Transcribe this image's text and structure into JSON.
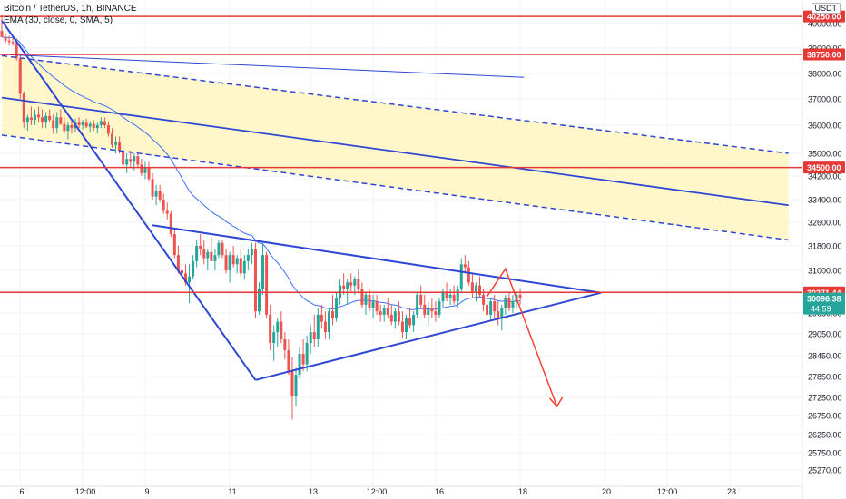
{
  "header": {
    "title": "Bitcoin / TetherUS, 1h, BINANCE",
    "indicator": "EMA (30, close, 0, SMA, 5)",
    "currency": "USDT"
  },
  "colors": {
    "bull": "#26a69a",
    "bear": "#ef5350",
    "ema": "#2962ff",
    "drawing_blue": "#2d47d4",
    "level_red": "#e53935",
    "channel_fill": "#fff5bf",
    "projection": "#f44336",
    "current_price_bg": "#26a69a"
  },
  "chart_data": {
    "type": "candlestick",
    "symbol": "BTCUSDT",
    "timeframe": "1h",
    "y_axis": {
      "ticks": [
        "40000.00",
        "39000.00",
        "38000.00",
        "37000.00",
        "36000.00",
        "35000.00",
        "34200.00",
        "33400.00",
        "32600.00",
        "31800.00",
        "31000.00",
        "30250.00",
        "29650.00",
        "29050.00",
        "28450.00",
        "27850.00",
        "27250.00",
        "26750.00",
        "26250.00",
        "25750.00",
        "25270.00"
      ],
      "range": [
        25000,
        40700
      ]
    },
    "x_axis": {
      "ticks": [
        "6",
        "12:00",
        "9",
        "11",
        "13",
        "12:00",
        "16",
        "18",
        "20",
        "12:00",
        "23"
      ]
    },
    "ema_period": 30,
    "horizontal_levels": [
      {
        "price": 40250.0,
        "label": "40250.00"
      },
      {
        "price": 38750.0,
        "label": "38750.00"
      },
      {
        "price": 34500.0,
        "label": "34500.00"
      },
      {
        "price": 30271.44,
        "label": "30271.44"
      }
    ],
    "current_price": {
      "value": 30096.38,
      "label": "30096.38",
      "countdown": "44:59"
    },
    "candles": [
      {
        "o": 39700,
        "h": 40300,
        "l": 39500,
        "c": 39450
      },
      {
        "o": 39450,
        "h": 39600,
        "l": 39200,
        "c": 39300
      },
      {
        "o": 39300,
        "h": 39500,
        "l": 39100,
        "c": 39250
      },
      {
        "o": 39250,
        "h": 39400,
        "l": 39100,
        "c": 39200
      },
      {
        "o": 39200,
        "h": 39400,
        "l": 38500,
        "c": 38600
      },
      {
        "o": 38600,
        "h": 38800,
        "l": 37000,
        "c": 37200
      },
      {
        "o": 37200,
        "h": 37300,
        "l": 35900,
        "c": 36100
      },
      {
        "o": 36100,
        "h": 36400,
        "l": 35800,
        "c": 36300
      },
      {
        "o": 36300,
        "h": 36700,
        "l": 36000,
        "c": 36200
      },
      {
        "o": 36200,
        "h": 36600,
        "l": 36000,
        "c": 36400
      },
      {
        "o": 36400,
        "h": 36700,
        "l": 36100,
        "c": 36300
      },
      {
        "o": 36300,
        "h": 36600,
        "l": 35900,
        "c": 36100
      },
      {
        "o": 36100,
        "h": 36500,
        "l": 35900,
        "c": 36350
      },
      {
        "o": 36350,
        "h": 36600,
        "l": 36100,
        "c": 36200
      },
      {
        "o": 36200,
        "h": 36400,
        "l": 35700,
        "c": 35900
      },
      {
        "o": 35900,
        "h": 36500,
        "l": 35700,
        "c": 36300
      },
      {
        "o": 36300,
        "h": 36600,
        "l": 36000,
        "c": 36050
      },
      {
        "o": 36050,
        "h": 36300,
        "l": 35700,
        "c": 35800
      },
      {
        "o": 35800,
        "h": 36100,
        "l": 35500,
        "c": 36000
      },
      {
        "o": 36000,
        "h": 36200,
        "l": 35700,
        "c": 35900
      },
      {
        "o": 35900,
        "h": 36250,
        "l": 35750,
        "c": 36100
      },
      {
        "o": 36100,
        "h": 36300,
        "l": 35900,
        "c": 36000
      },
      {
        "o": 36000,
        "h": 36200,
        "l": 35850,
        "c": 36100
      },
      {
        "o": 36100,
        "h": 36250,
        "l": 35900,
        "c": 35950
      },
      {
        "o": 35950,
        "h": 36150,
        "l": 35750,
        "c": 36050
      },
      {
        "o": 36050,
        "h": 36200,
        "l": 35800,
        "c": 35900
      },
      {
        "o": 35900,
        "h": 36100,
        "l": 35700,
        "c": 36000
      },
      {
        "o": 36000,
        "h": 36300,
        "l": 35900,
        "c": 36150
      },
      {
        "o": 36150,
        "h": 36300,
        "l": 35900,
        "c": 36000
      },
      {
        "o": 36000,
        "h": 36150,
        "l": 35600,
        "c": 35700
      },
      {
        "o": 35700,
        "h": 35900,
        "l": 35200,
        "c": 35300
      },
      {
        "o": 35300,
        "h": 35600,
        "l": 35000,
        "c": 35400
      },
      {
        "o": 35400,
        "h": 35600,
        "l": 35000,
        "c": 35100
      },
      {
        "o": 35100,
        "h": 35300,
        "l": 34500,
        "c": 34600
      },
      {
        "o": 34600,
        "h": 35000,
        "l": 34300,
        "c": 34800
      },
      {
        "o": 34800,
        "h": 35100,
        "l": 34500,
        "c": 34700
      },
      {
        "o": 34700,
        "h": 35000,
        "l": 34400,
        "c": 34900
      },
      {
        "o": 34900,
        "h": 35050,
        "l": 34500,
        "c": 34600
      },
      {
        "o": 34600,
        "h": 34800,
        "l": 34200,
        "c": 34300
      },
      {
        "o": 34300,
        "h": 34700,
        "l": 34100,
        "c": 34500
      },
      {
        "o": 34500,
        "h": 34700,
        "l": 34000,
        "c": 34100
      },
      {
        "o": 34100,
        "h": 34300,
        "l": 33400,
        "c": 33500
      },
      {
        "o": 33500,
        "h": 33900,
        "l": 33200,
        "c": 33700
      },
      {
        "o": 33700,
        "h": 33900,
        "l": 33300,
        "c": 33400
      },
      {
        "o": 33400,
        "h": 33600,
        "l": 32900,
        "c": 33000
      },
      {
        "o": 33000,
        "h": 33300,
        "l": 32700,
        "c": 32900
      },
      {
        "o": 32900,
        "h": 33000,
        "l": 32100,
        "c": 32200
      },
      {
        "o": 32200,
        "h": 32400,
        "l": 31400,
        "c": 31500
      },
      {
        "o": 31500,
        "h": 31800,
        "l": 30900,
        "c": 31000
      },
      {
        "o": 31000,
        "h": 31300,
        "l": 30700,
        "c": 30900
      },
      {
        "o": 30900,
        "h": 31200,
        "l": 30500,
        "c": 30600
      },
      {
        "o": 30600,
        "h": 31200,
        "l": 29950,
        "c": 30800
      },
      {
        "o": 30800,
        "h": 31500,
        "l": 30700,
        "c": 31300
      },
      {
        "o": 31300,
        "h": 32000,
        "l": 31100,
        "c": 31800
      },
      {
        "o": 31800,
        "h": 32200,
        "l": 31500,
        "c": 31700
      },
      {
        "o": 31700,
        "h": 32000,
        "l": 31200,
        "c": 31400
      },
      {
        "o": 31400,
        "h": 31700,
        "l": 31000,
        "c": 31600
      },
      {
        "o": 31600,
        "h": 32100,
        "l": 31300,
        "c": 31300
      },
      {
        "o": 31300,
        "h": 31700,
        "l": 31000,
        "c": 31500
      },
      {
        "o": 31500,
        "h": 32000,
        "l": 31400,
        "c": 31900
      },
      {
        "o": 31900,
        "h": 32000,
        "l": 31400,
        "c": 31500
      },
      {
        "o": 31500,
        "h": 31700,
        "l": 30900,
        "c": 31000
      },
      {
        "o": 31000,
        "h": 31600,
        "l": 30600,
        "c": 31500
      },
      {
        "o": 31500,
        "h": 31800,
        "l": 31100,
        "c": 31200
      },
      {
        "o": 31200,
        "h": 31500,
        "l": 30900,
        "c": 31400
      },
      {
        "o": 31400,
        "h": 31700,
        "l": 30800,
        "c": 30900
      },
      {
        "o": 30900,
        "h": 31500,
        "l": 30700,
        "c": 31300
      },
      {
        "o": 31300,
        "h": 31700,
        "l": 31000,
        "c": 31500
      },
      {
        "o": 31500,
        "h": 31900,
        "l": 31200,
        "c": 31700
      },
      {
        "o": 31700,
        "h": 31900,
        "l": 29500,
        "c": 29700
      },
      {
        "o": 29700,
        "h": 30600,
        "l": 29600,
        "c": 30400
      },
      {
        "o": 30400,
        "h": 31900,
        "l": 30200,
        "c": 31500
      },
      {
        "o": 31500,
        "h": 31600,
        "l": 29500,
        "c": 29600
      },
      {
        "o": 29600,
        "h": 29900,
        "l": 28600,
        "c": 28800
      },
      {
        "o": 28800,
        "h": 29300,
        "l": 28300,
        "c": 29100
      },
      {
        "o": 29100,
        "h": 29500,
        "l": 28700,
        "c": 29400
      },
      {
        "o": 29400,
        "h": 29700,
        "l": 28800,
        "c": 28900
      },
      {
        "o": 28900,
        "h": 29100,
        "l": 28350,
        "c": 28600
      },
      {
        "o": 28600,
        "h": 28900,
        "l": 27900,
        "c": 28000
      },
      {
        "o": 28000,
        "h": 28400,
        "l": 26650,
        "c": 27300
      },
      {
        "o": 27300,
        "h": 28100,
        "l": 27000,
        "c": 27900
      },
      {
        "o": 27900,
        "h": 28700,
        "l": 27800,
        "c": 28500
      },
      {
        "o": 28500,
        "h": 28900,
        "l": 28000,
        "c": 28200
      },
      {
        "o": 28200,
        "h": 29000,
        "l": 28000,
        "c": 28800
      },
      {
        "o": 28800,
        "h": 29300,
        "l": 28500,
        "c": 29100
      },
      {
        "o": 29100,
        "h": 29600,
        "l": 28700,
        "c": 28900
      },
      {
        "o": 28900,
        "h": 29800,
        "l": 28700,
        "c": 29600
      },
      {
        "o": 29600,
        "h": 29900,
        "l": 29200,
        "c": 29400
      },
      {
        "o": 29400,
        "h": 29700,
        "l": 28900,
        "c": 29100
      },
      {
        "o": 29100,
        "h": 29800,
        "l": 28900,
        "c": 29700
      },
      {
        "o": 29700,
        "h": 30200,
        "l": 29300,
        "c": 29500
      },
      {
        "o": 29500,
        "h": 30300,
        "l": 29400,
        "c": 30100
      },
      {
        "o": 30100,
        "h": 30700,
        "l": 29900,
        "c": 30500
      },
      {
        "o": 30500,
        "h": 30900,
        "l": 30200,
        "c": 30400
      },
      {
        "o": 30400,
        "h": 30700,
        "l": 29900,
        "c": 30600
      },
      {
        "o": 30600,
        "h": 30900,
        "l": 30300,
        "c": 30500
      },
      {
        "o": 30500,
        "h": 30800,
        "l": 30200,
        "c": 30700
      },
      {
        "o": 30700,
        "h": 31050,
        "l": 30300,
        "c": 30400
      },
      {
        "o": 30400,
        "h": 30600,
        "l": 29800,
        "c": 29900
      },
      {
        "o": 29900,
        "h": 30300,
        "l": 29600,
        "c": 30200
      },
      {
        "o": 30200,
        "h": 30400,
        "l": 29700,
        "c": 29800
      },
      {
        "o": 29800,
        "h": 30200,
        "l": 29500,
        "c": 30000
      },
      {
        "o": 30000,
        "h": 30200,
        "l": 29600,
        "c": 29700
      },
      {
        "o": 29700,
        "h": 29900,
        "l": 29400,
        "c": 29600
      },
      {
        "o": 29600,
        "h": 29900,
        "l": 29400,
        "c": 29800
      },
      {
        "o": 29800,
        "h": 30100,
        "l": 29500,
        "c": 29600
      },
      {
        "o": 29600,
        "h": 29900,
        "l": 29300,
        "c": 29400
      },
      {
        "o": 29400,
        "h": 29800,
        "l": 29200,
        "c": 29700
      },
      {
        "o": 29700,
        "h": 30000,
        "l": 29300,
        "c": 29400
      },
      {
        "o": 29400,
        "h": 29700,
        "l": 28950,
        "c": 29100
      },
      {
        "o": 29100,
        "h": 29600,
        "l": 28900,
        "c": 29500
      },
      {
        "o": 29500,
        "h": 29800,
        "l": 29200,
        "c": 29300
      },
      {
        "o": 29300,
        "h": 29700,
        "l": 29100,
        "c": 29600
      },
      {
        "o": 29600,
        "h": 30300,
        "l": 29500,
        "c": 30200
      },
      {
        "o": 30200,
        "h": 30500,
        "l": 29800,
        "c": 29900
      },
      {
        "o": 29900,
        "h": 30200,
        "l": 29500,
        "c": 29600
      },
      {
        "o": 29600,
        "h": 30000,
        "l": 29300,
        "c": 29800
      },
      {
        "o": 29800,
        "h": 30100,
        "l": 29500,
        "c": 29700
      },
      {
        "o": 29700,
        "h": 30000,
        "l": 29400,
        "c": 29600
      },
      {
        "o": 29600,
        "h": 30100,
        "l": 29500,
        "c": 30000
      },
      {
        "o": 30000,
        "h": 30400,
        "l": 29800,
        "c": 30300
      },
      {
        "o": 30300,
        "h": 30600,
        "l": 30000,
        "c": 30100
      },
      {
        "o": 30100,
        "h": 30400,
        "l": 29900,
        "c": 30200
      },
      {
        "o": 30200,
        "h": 30500,
        "l": 29900,
        "c": 30000
      },
      {
        "o": 30000,
        "h": 30500,
        "l": 29800,
        "c": 30400
      },
      {
        "o": 30400,
        "h": 31400,
        "l": 30300,
        "c": 31200
      },
      {
        "o": 31200,
        "h": 31500,
        "l": 30900,
        "c": 31100
      },
      {
        "o": 31100,
        "h": 31300,
        "l": 30500,
        "c": 30600
      },
      {
        "o": 30600,
        "h": 30900,
        "l": 30100,
        "c": 30300
      },
      {
        "o": 30300,
        "h": 30600,
        "l": 30000,
        "c": 30500
      },
      {
        "o": 30500,
        "h": 30800,
        "l": 30100,
        "c": 30200
      },
      {
        "o": 30200,
        "h": 30400,
        "l": 29700,
        "c": 29900
      },
      {
        "o": 29900,
        "h": 30200,
        "l": 29500,
        "c": 29600
      },
      {
        "o": 29600,
        "h": 30100,
        "l": 29400,
        "c": 30000
      },
      {
        "o": 30000,
        "h": 30200,
        "l": 29500,
        "c": 29700
      },
      {
        "o": 29700,
        "h": 30000,
        "l": 29300,
        "c": 29500
      },
      {
        "o": 29500,
        "h": 29900,
        "l": 29150,
        "c": 29800
      },
      {
        "o": 29800,
        "h": 30200,
        "l": 29600,
        "c": 30100
      },
      {
        "o": 30100,
        "h": 30300,
        "l": 29700,
        "c": 29800
      },
      {
        "o": 29800,
        "h": 30200,
        "l": 29650,
        "c": 30000
      },
      {
        "o": 30000,
        "h": 30300,
        "l": 29800,
        "c": 30200
      },
      {
        "o": 30200,
        "h": 30400,
        "l": 29900,
        "c": 30100
      }
    ],
    "drawings": {
      "channel_upper_dashed": [
        {
          "t": 0,
          "p": 38700
        },
        {
          "t": 214,
          "p": 35000
        }
      ],
      "channel_middle": [
        {
          "t": 0,
          "p": 37050
        },
        {
          "t": 214,
          "p": 33200
        }
      ],
      "channel_lower_dashed": [
        {
          "t": 0,
          "p": 35650
        },
        {
          "t": 214,
          "p": 32000
        }
      ],
      "thin_trendline": [
        {
          "t": 0,
          "p": 38750
        },
        {
          "t": 142,
          "p": 37850
        }
      ],
      "steep_downtrend": [
        {
          "t": 0,
          "p": 40100
        },
        {
          "t": 69,
          "p": 27750
        }
      ],
      "triangle_upper": [
        {
          "t": 41,
          "p": 32500
        },
        {
          "t": 163,
          "p": 30260
        }
      ],
      "triangle_lower": [
        {
          "t": 69,
          "p": 27750
        },
        {
          "t": 163,
          "p": 30260
        }
      ],
      "projection": [
        {
          "t": 132,
          "p": 30150
        },
        {
          "t": 137,
          "p": 31050
        },
        {
          "t": 151,
          "p": 27000
        }
      ]
    }
  }
}
